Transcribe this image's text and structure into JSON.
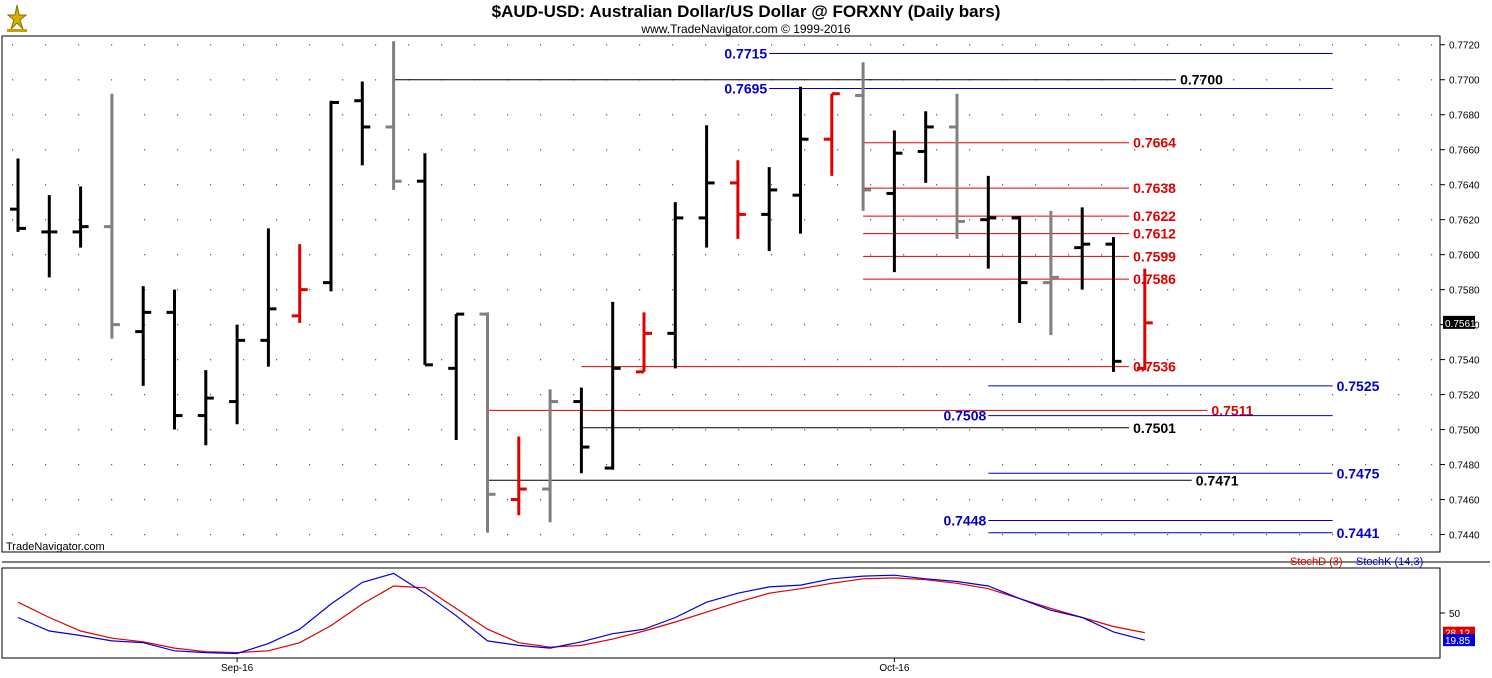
{
  "header": {
    "title": "$AUD-USD:  Australian Dollar/US Dollar @ FORXNY  (Daily bars)",
    "subtitle": "www.TradeNavigator.com © 1999-2016"
  },
  "footer": {
    "credit": "TradeNavigator.com"
  },
  "chart_data": [
    {
      "type": "ohlc",
      "ylim": [
        0.743,
        0.7725
      ],
      "y_ticks": [
        "0.7720",
        "0.7700",
        "0.7680",
        "0.7660",
        "0.7640",
        "0.7620",
        "0.7600",
        "0.7580",
        "0.7560",
        "0.7540",
        "0.7520",
        "0.7500",
        "0.7480",
        "0.7460",
        "0.7440"
      ],
      "last_price_label": "0.7561",
      "last_price": 0.7561,
      "x_tick_labels": [
        {
          "label": "Sep-16",
          "bar": 7
        },
        {
          "label": "Oct-16",
          "bar": 28
        }
      ],
      "grid": "dotted",
      "colors": {
        "up_or_down": "#000000",
        "inside": "#808080",
        "outside": "#e00000"
      },
      "bars": [
        {
          "o": 0.7626,
          "h": 0.7655,
          "l": 0.7613,
          "c": 0.7615,
          "color": "#000000"
        },
        {
          "o": 0.7613,
          "h": 0.7634,
          "l": 0.7587,
          "c": 0.7613,
          "color": "#000000"
        },
        {
          "o": 0.7613,
          "h": 0.7639,
          "l": 0.7604,
          "c": 0.7616,
          "color": "#000000"
        },
        {
          "o": 0.7616,
          "h": 0.7692,
          "l": 0.7552,
          "c": 0.756,
          "color": "#808080"
        },
        {
          "o": 0.7556,
          "h": 0.7582,
          "l": 0.7525,
          "c": 0.7567,
          "color": "#000000"
        },
        {
          "o": 0.7567,
          "h": 0.758,
          "l": 0.75,
          "c": 0.7508,
          "color": "#000000"
        },
        {
          "o": 0.7508,
          "h": 0.7534,
          "l": 0.7491,
          "c": 0.7518,
          "color": "#000000"
        },
        {
          "o": 0.7516,
          "h": 0.756,
          "l": 0.7503,
          "c": 0.7551,
          "color": "#000000"
        },
        {
          "o": 0.7551,
          "h": 0.7615,
          "l": 0.7536,
          "c": 0.7569,
          "color": "#000000"
        },
        {
          "o": 0.7565,
          "h": 0.7606,
          "l": 0.7561,
          "c": 0.758,
          "color": "#e00000"
        },
        {
          "o": 0.7584,
          "h": 0.7688,
          "l": 0.7579,
          "c": 0.7687,
          "color": "#000000"
        },
        {
          "o": 0.7688,
          "h": 0.7699,
          "l": 0.7651,
          "c": 0.7673,
          "color": "#000000"
        },
        {
          "o": 0.7673,
          "h": 0.7722,
          "l": 0.7637,
          "c": 0.7642,
          "color": "#808080"
        },
        {
          "o": 0.7642,
          "h": 0.7658,
          "l": 0.7537,
          "c": 0.7537,
          "color": "#000000"
        },
        {
          "o": 0.7535,
          "h": 0.7566,
          "l": 0.7494,
          "c": 0.7566,
          "color": "#000000"
        },
        {
          "o": 0.7566,
          "h": 0.7567,
          "l": 0.7441,
          "c": 0.7463,
          "color": "#808080"
        },
        {
          "o": 0.746,
          "h": 0.7496,
          "l": 0.7451,
          "c": 0.7466,
          "color": "#e00000"
        },
        {
          "o": 0.7466,
          "h": 0.7523,
          "l": 0.7447,
          "c": 0.7516,
          "color": "#808080"
        },
        {
          "o": 0.7516,
          "h": 0.7524,
          "l": 0.7475,
          "c": 0.749,
          "color": "#000000"
        },
        {
          "o": 0.7478,
          "h": 0.7573,
          "l": 0.7477,
          "c": 0.7535,
          "color": "#000000"
        },
        {
          "o": 0.7533,
          "h": 0.7567,
          "l": 0.7533,
          "c": 0.7555,
          "color": "#e00000"
        },
        {
          "o": 0.7555,
          "h": 0.763,
          "l": 0.7535,
          "c": 0.7621,
          "color": "#000000"
        },
        {
          "o": 0.7621,
          "h": 0.7674,
          "l": 0.7604,
          "c": 0.7641,
          "color": "#000000"
        },
        {
          "o": 0.7641,
          "h": 0.7654,
          "l": 0.7609,
          "c": 0.7623,
          "color": "#e00000"
        },
        {
          "o": 0.7623,
          "h": 0.765,
          "l": 0.7602,
          "c": 0.7637,
          "color": "#000000"
        },
        {
          "o": 0.7634,
          "h": 0.7696,
          "l": 0.7612,
          "c": 0.7666,
          "color": "#000000"
        },
        {
          "o": 0.7666,
          "h": 0.7692,
          "l": 0.7645,
          "c": 0.7692,
          "color": "#e00000"
        },
        {
          "o": 0.7691,
          "h": 0.771,
          "l": 0.7625,
          "c": 0.7637,
          "color": "#808080"
        },
        {
          "o": 0.7635,
          "h": 0.7671,
          "l": 0.759,
          "c": 0.7658,
          "color": "#000000"
        },
        {
          "o": 0.7659,
          "h": 0.7682,
          "l": 0.7641,
          "c": 0.7673,
          "color": "#000000"
        },
        {
          "o": 0.7673,
          "h": 0.7692,
          "l": 0.7609,
          "c": 0.7619,
          "color": "#808080"
        },
        {
          "o": 0.762,
          "h": 0.7645,
          "l": 0.7592,
          "c": 0.7621,
          "color": "#000000"
        },
        {
          "o": 0.7621,
          "h": 0.7622,
          "l": 0.7561,
          "c": 0.7584,
          "color": "#000000"
        },
        {
          "o": 0.7584,
          "h": 0.7625,
          "l": 0.7554,
          "c": 0.7587,
          "color": "#808080"
        },
        {
          "o": 0.7604,
          "h": 0.7627,
          "l": 0.758,
          "c": 0.7606,
          "color": "#000000"
        },
        {
          "o": 0.7606,
          "h": 0.761,
          "l": 0.7533,
          "c": 0.7539,
          "color": "#000000"
        },
        {
          "o": 0.7535,
          "h": 0.7592,
          "l": 0.7534,
          "c": 0.7561,
          "color": "#e00000"
        }
      ],
      "levels": [
        {
          "value": 0.7715,
          "label": "0.7715",
          "color": "#0000cc",
          "from_bar": 24,
          "to_bar": 42,
          "label_side": "left"
        },
        {
          "value": 0.7695,
          "label": "0.7695",
          "color": "#0000cc",
          "from_bar": 24,
          "to_bar": 42,
          "label_side": "left"
        },
        {
          "value": 0.77,
          "label": "0.7700",
          "color": "#000000",
          "from_bar": 12,
          "to_bar": 37,
          "label_side": "right"
        },
        {
          "value": 0.7664,
          "label": "0.7664",
          "color": "#e00000",
          "from_bar": 27,
          "to_bar": 35.5,
          "label_side": "right"
        },
        {
          "value": 0.7638,
          "label": "0.7638",
          "color": "#e00000",
          "from_bar": 27,
          "to_bar": 35.5,
          "label_side": "right"
        },
        {
          "value": 0.7622,
          "label": "0.7622",
          "color": "#e00000",
          "from_bar": 27,
          "to_bar": 35.5,
          "label_side": "right"
        },
        {
          "value": 0.7612,
          "label": "0.7612",
          "color": "#e00000",
          "from_bar": 27,
          "to_bar": 35.5,
          "label_side": "right"
        },
        {
          "value": 0.7599,
          "label": "0.7599",
          "color": "#e00000",
          "from_bar": 27,
          "to_bar": 35.5,
          "label_side": "right"
        },
        {
          "value": 0.7586,
          "label": "0.7586",
          "color": "#e00000",
          "from_bar": 27,
          "to_bar": 35.5,
          "label_side": "right"
        },
        {
          "value": 0.7536,
          "label": "0.7536",
          "color": "#e00000",
          "from_bar": 18,
          "to_bar": 35.5,
          "label_side": "right"
        },
        {
          "value": 0.7525,
          "label": "0.7525",
          "color": "#0000cc",
          "from_bar": 31,
          "to_bar": 42,
          "label_side": "right"
        },
        {
          "value": 0.7511,
          "label": "0.7511",
          "color": "#e00000",
          "from_bar": 15,
          "to_bar": 38,
          "label_side": "right"
        },
        {
          "value": 0.7508,
          "label": "0.7508",
          "color": "#0000cc",
          "from_bar": 31,
          "to_bar": 42,
          "label_side": "left"
        },
        {
          "value": 0.7501,
          "label": "0.7501",
          "color": "#000000",
          "from_bar": 18,
          "to_bar": 35.5,
          "label_side": "right"
        },
        {
          "value": 0.7475,
          "label": "0.7475",
          "color": "#0000cc",
          "from_bar": 31,
          "to_bar": 42,
          "label_side": "right"
        },
        {
          "value": 0.7471,
          "label": "0.7471",
          "color": "#000000",
          "from_bar": 15,
          "to_bar": 37.5,
          "label_side": "right"
        },
        {
          "value": 0.7448,
          "label": "0.7448",
          "color": "#0000cc",
          "from_bar": 31,
          "to_bar": 42,
          "label_side": "left"
        },
        {
          "value": 0.7441,
          "label": "0.7441",
          "color": "#0000cc",
          "from_bar": 31,
          "to_bar": 42,
          "label_side": "right"
        }
      ]
    },
    {
      "type": "line",
      "ylim": [
        0,
        100
      ],
      "y_ticks": [
        "50"
      ],
      "series": [
        {
          "name": "StochD (3)",
          "color": "#dd0000",
          "last_label": "28.12",
          "values": [
            62,
            45,
            30,
            22,
            18,
            11,
            7,
            6,
            8,
            17,
            36,
            60,
            80,
            78,
            55,
            32,
            17,
            12,
            14,
            21,
            30,
            40,
            51,
            62,
            72,
            77,
            83,
            88,
            89,
            87,
            83,
            77,
            66,
            55,
            45,
            35,
            28.12
          ]
        },
        {
          "name": "StochK (14,3)",
          "color": "#0000dd",
          "last_label": "19.85",
          "values": [
            45,
            30,
            25,
            19,
            17,
            8,
            6,
            5,
            16,
            32,
            60,
            84,
            94,
            72,
            47,
            19,
            14,
            11,
            18,
            27,
            32,
            45,
            62,
            72,
            79,
            81,
            88,
            91,
            92,
            88,
            85,
            80,
            66,
            53,
            45,
            29,
            19.85
          ]
        }
      ]
    }
  ]
}
